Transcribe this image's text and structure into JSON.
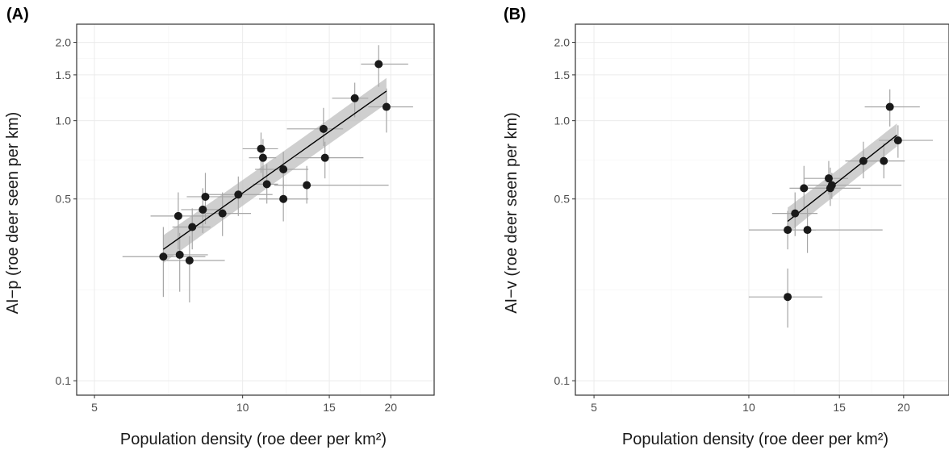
{
  "chart_data": [
    {
      "panel_label": "(A)",
      "type": "scatter",
      "xlabel": "Population density (roe deer per km²)",
      "ylabel": "AI−p (roe deer seen per km)",
      "x_scale": "log",
      "y_scale": "log",
      "xlim": [
        4.6,
        24.5
      ],
      "ylim": [
        0.088,
        2.35
      ],
      "x_ticks": [
        {
          "v": 5,
          "label": "5"
        },
        {
          "v": 10,
          "label": "10"
        },
        {
          "v": 15,
          "label": "15"
        },
        {
          "v": 20,
          "label": "20"
        }
      ],
      "y_ticks": [
        {
          "v": 0.1,
          "label": "0.1"
        },
        {
          "v": 0.5,
          "label": "0.5"
        },
        {
          "v": 1.0,
          "label": "1.0"
        },
        {
          "v": 1.5,
          "label": "1.5"
        },
        {
          "v": 2.0,
          "label": "2.0"
        }
      ],
      "grid": true,
      "points": [
        {
          "x": 6.9,
          "y": 0.3,
          "xlo": 5.7,
          "xhi": 8.4,
          "ylo": 0.21,
          "yhi": 0.39
        },
        {
          "x": 7.4,
          "y": 0.43,
          "xlo": 6.5,
          "xhi": 8.6,
          "ylo": 0.32,
          "yhi": 0.53
        },
        {
          "x": 7.45,
          "y": 0.305,
          "xlo": 6.9,
          "xhi": 8.5,
          "ylo": 0.22,
          "yhi": 0.37
        },
        {
          "x": 7.8,
          "y": 0.29,
          "xlo": 7.0,
          "xhi": 9.2,
          "ylo": 0.2,
          "yhi": 0.36
        },
        {
          "x": 7.9,
          "y": 0.39,
          "xlo": 7.2,
          "xhi": 8.6,
          "ylo": 0.32,
          "yhi": 0.46
        },
        {
          "x": 8.3,
          "y": 0.455,
          "xlo": 7.5,
          "xhi": 9.2,
          "ylo": 0.37,
          "yhi": 0.55
        },
        {
          "x": 8.4,
          "y": 0.51,
          "xlo": 7.7,
          "xhi": 9.7,
          "ylo": 0.4,
          "yhi": 0.63
        },
        {
          "x": 9.1,
          "y": 0.44,
          "xlo": 8.3,
          "xhi": 10.4,
          "ylo": 0.36,
          "yhi": 0.53
        },
        {
          "x": 9.8,
          "y": 0.52,
          "xlo": 8.5,
          "xhi": 11.5,
          "ylo": 0.43,
          "yhi": 0.61
        },
        {
          "x": 10.9,
          "y": 0.78,
          "xlo": 10.0,
          "xhi": 11.8,
          "ylo": 0.63,
          "yhi": 0.9
        },
        {
          "x": 11.0,
          "y": 0.72,
          "xlo": 10.3,
          "xhi": 11.7,
          "ylo": 0.59,
          "yhi": 0.85
        },
        {
          "x": 11.2,
          "y": 0.57,
          "xlo": 10.5,
          "xhi": 11.8,
          "ylo": 0.48,
          "yhi": 0.68
        },
        {
          "x": 12.1,
          "y": 0.65,
          "xlo": 10.6,
          "xhi": 13.6,
          "ylo": 0.55,
          "yhi": 0.76
        },
        {
          "x": 12.1,
          "y": 0.5,
          "xlo": 10.8,
          "xhi": 13.6,
          "ylo": 0.41,
          "yhi": 0.59
        },
        {
          "x": 13.5,
          "y": 0.565,
          "xlo": 11.6,
          "xhi": 19.8,
          "ylo": 0.48,
          "yhi": 0.67
        },
        {
          "x": 14.6,
          "y": 0.93,
          "xlo": 12.3,
          "xhi": 16.0,
          "ylo": 0.8,
          "yhi": 1.12
        },
        {
          "x": 14.7,
          "y": 0.72,
          "xlo": 12.8,
          "xhi": 17.6,
          "ylo": 0.6,
          "yhi": 0.83
        },
        {
          "x": 16.9,
          "y": 1.22,
          "xlo": 15.2,
          "xhi": 18.0,
          "ylo": 1.03,
          "yhi": 1.4
        },
        {
          "x": 18.9,
          "y": 1.65,
          "xlo": 17.4,
          "xhi": 21.7,
          "ylo": 1.35,
          "yhi": 1.95
        },
        {
          "x": 19.6,
          "y": 1.13,
          "xlo": 18.0,
          "xhi": 22.2,
          "ylo": 0.9,
          "yhi": 1.33
        }
      ],
      "fit": {
        "x": [
          6.9,
          19.6
        ],
        "y": [
          0.32,
          1.3
        ],
        "ci_lo": [
          0.285,
          1.17
        ],
        "ci_hi": [
          0.36,
          1.45
        ]
      }
    },
    {
      "panel_label": "(B)",
      "type": "scatter",
      "xlabel": "Population density (roe deer per km²)",
      "ylabel": "AI−v (roe deer seen per km)",
      "x_scale": "log",
      "y_scale": "log",
      "xlim": [
        4.6,
        24.5
      ],
      "ylim": [
        0.088,
        2.35
      ],
      "x_ticks": [
        {
          "v": 5,
          "label": "5"
        },
        {
          "v": 10,
          "label": "10"
        },
        {
          "v": 15,
          "label": "15"
        },
        {
          "v": 20,
          "label": "20"
        }
      ],
      "y_ticks": [
        {
          "v": 0.1,
          "label": "0.1"
        },
        {
          "v": 0.5,
          "label": "0.5"
        },
        {
          "v": 1.0,
          "label": "1.0"
        },
        {
          "v": 1.5,
          "label": "1.5"
        },
        {
          "v": 2.0,
          "label": "2.0"
        }
      ],
      "grid": true,
      "points": [
        {
          "x": 11.9,
          "y": 0.21,
          "xlo": 10.0,
          "xhi": 13.9,
          "ylo": 0.16,
          "yhi": 0.27
        },
        {
          "x": 11.9,
          "y": 0.38,
          "xlo": 10.0,
          "xhi": 13.5,
          "ylo": 0.32,
          "yhi": 0.45
        },
        {
          "x": 12.3,
          "y": 0.44,
          "xlo": 11.1,
          "xhi": 13.6,
          "ylo": 0.36,
          "yhi": 0.53
        },
        {
          "x": 12.8,
          "y": 0.55,
          "xlo": 12.0,
          "xhi": 14.6,
          "ylo": 0.46,
          "yhi": 0.67
        },
        {
          "x": 13.0,
          "y": 0.38,
          "xlo": 12.6,
          "xhi": 18.2,
          "ylo": 0.31,
          "yhi": 0.46
        },
        {
          "x": 14.3,
          "y": 0.6,
          "xlo": 12.8,
          "xhi": 15.6,
          "ylo": 0.52,
          "yhi": 0.7
        },
        {
          "x": 14.4,
          "y": 0.55,
          "xlo": 12.7,
          "xhi": 16.5,
          "ylo": 0.47,
          "yhi": 0.66
        },
        {
          "x": 14.5,
          "y": 0.565,
          "xlo": 13.0,
          "xhi": 19.8,
          "ylo": 0.5,
          "yhi": 0.63
        },
        {
          "x": 16.7,
          "y": 0.7,
          "xlo": 15.4,
          "xhi": 17.8,
          "ylo": 0.6,
          "yhi": 0.83
        },
        {
          "x": 18.3,
          "y": 0.7,
          "xlo": 16.9,
          "xhi": 20.1,
          "ylo": 0.6,
          "yhi": 0.82
        },
        {
          "x": 18.8,
          "y": 1.13,
          "xlo": 16.8,
          "xhi": 21.5,
          "ylo": 0.95,
          "yhi": 1.32
        },
        {
          "x": 19.5,
          "y": 0.84,
          "xlo": 17.9,
          "xhi": 22.8,
          "ylo": 0.72,
          "yhi": 0.96
        }
      ],
      "fit": {
        "x": [
          11.9,
          19.4
        ],
        "y": [
          0.41,
          0.88
        ],
        "ci_lo": [
          0.37,
          0.8
        ],
        "ci_hi": [
          0.46,
          0.97
        ]
      }
    }
  ],
  "style": {
    "point_color": "#1a1a1a",
    "errorbar_color": "#a6a6a6",
    "ribbon_color": "#bfbfbf",
    "fit_color": "#000000",
    "grid_color": "#ebebeb",
    "panel_border": "#333333"
  }
}
